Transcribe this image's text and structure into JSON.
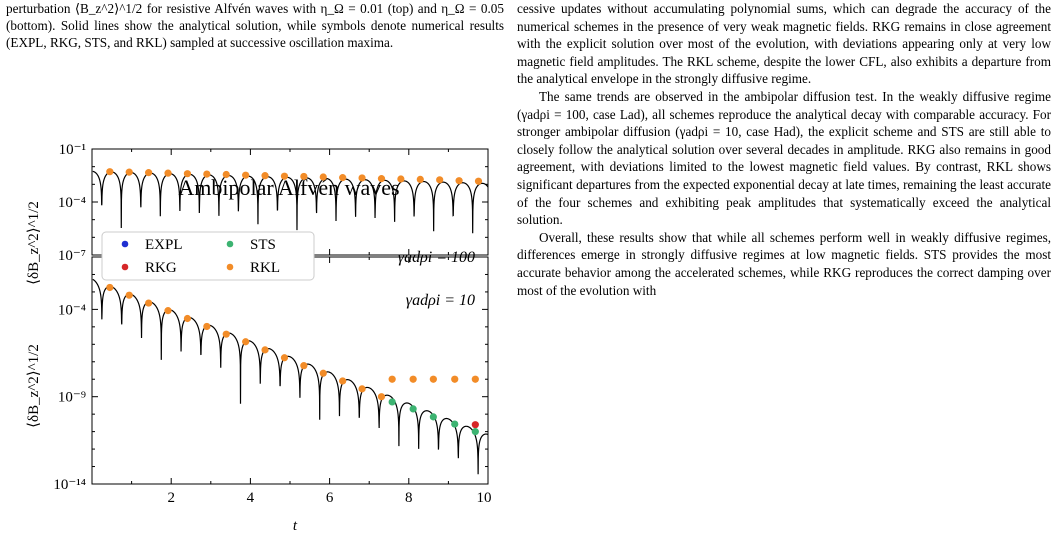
{
  "caption": {
    "text": "perturbation ⟨B_z^2⟩^1/2 for resistive Alfvén waves with η_Ω = 0.01 (top) and η_Ω = 0.05 (bottom). Solid lines show the analytical solution, while symbols denote numerical results (EXPL, RKG, STS, and RKL) sampled at successive oscillation maxima."
  },
  "body_text": {
    "p1": "cessive updates without accumulating polynomial sums, which can degrade the accuracy of the numerical schemes in the presence of very weak magnetic fields. RKG remains in close agreement with the explicit solution over most of the evolution, with deviations appearing only at very low magnetic field amplitudes. The RKL scheme, despite the lower CFL, also exhibits a departure from the analytical envelope in the strongly diffusive regime.",
    "p2": "The same trends are observed in the ambipolar diffusion test. In the weakly diffusive regime (γadρi = 100, case Lad), all schemes reproduce the analytical decay with comparable accuracy. For stronger ambipolar diffusion (γadρi = 10, case Had), the explicit scheme and STS are still able to closely follow the analytical solution over several decades in amplitude. RKG also remains in good agreement, with deviations limited to the lowest magnetic field values. By contrast, RKL shows significant departures from the expected exponential decay at late times, remaining the least accurate of the four schemes and exhibiting peak amplitudes that systematically exceed the analytical solution.",
    "p3": "Overall, these results show that while all schemes perform well in weakly diffusive regimes, differences emerge in strongly diffusive regimes at low magnetic fields. STS provides the most accurate behavior among the accelerated schemes, while RKG reproduces the correct damping over most of the evolution with"
  },
  "chart_data": [
    {
      "type": "line",
      "title": "Ambipolar Alfvén waves",
      "annotation": "γadρi = 100",
      "ylabel": "⟨δB_z^2⟩^1/2",
      "yscale": "log",
      "ylim": [
        1e-07,
        0.1
      ],
      "ytick_labels": [
        "10⁻⁷",
        "10⁻⁴",
        "10⁻¹"
      ],
      "xlim": [
        0,
        10
      ],
      "legend": {
        "placement": "lower-left",
        "entries": [
          "EXPL",
          "STS",
          "RKG",
          "RKL"
        ]
      },
      "colors": {
        "EXPL": "#1f2fd1",
        "RKG": "#d62728",
        "STS": "#3cb371",
        "RKL": "#f28c28",
        "analytical": "#000000"
      },
      "analytical": {
        "amplitude0": 0.0055,
        "decay_rate": 0.16,
        "half_period": 0.493
      },
      "markers_t": [
        0.45,
        0.94,
        1.43,
        1.92,
        2.41,
        2.9,
        3.39,
        3.88,
        4.37,
        4.86,
        5.35,
        5.84,
        6.33,
        6.82,
        7.31,
        7.8,
        8.29,
        8.78,
        9.27,
        9.76
      ],
      "markers_y": {
        "RKL": [
          0.0052,
          0.0049,
          0.0046,
          0.0043,
          0.004,
          0.0038,
          0.0036,
          0.0033,
          0.0031,
          0.0029,
          0.0028,
          0.0026,
          0.0024,
          0.0023,
          0.0021,
          0.002,
          0.0019,
          0.0018,
          0.0016,
          0.0015
        ]
      }
    },
    {
      "type": "line",
      "annotation": "γadρi = 10",
      "ylabel": "⟨δB_z^2⟩^1/2",
      "xlabel": "t",
      "yscale": "log",
      "ylim": [
        1e-14,
        0.1
      ],
      "ytick_labels": [
        "10⁻¹⁴",
        "10⁻⁹",
        "10⁻⁴"
      ],
      "xlim": [
        0,
        10
      ],
      "xtick_labels": [
        "2",
        "4",
        "6",
        "8",
        "10"
      ],
      "analytical": {
        "amplitude0": 0.0055,
        "decay_rate": 2.05,
        "half_period": 0.5
      },
      "markers_t": [
        0.45,
        0.94,
        1.43,
        1.92,
        2.41,
        2.9,
        3.39,
        3.88,
        4.37,
        4.86,
        5.35,
        5.84,
        6.33,
        6.82,
        7.31,
        7.58,
        8.11,
        8.62,
        9.16,
        9.68
      ],
      "markers_y": {
        "RKL": [
          0.0018,
          0.00065,
          0.00023,
          8.5e-05,
          3e-05,
          1.05e-05,
          3.8e-06,
          1.4e-06,
          4.8e-07,
          1.7e-07,
          6e-08,
          2.2e-08,
          8e-09,
          2.8e-09,
          1e-09,
          1e-08,
          1e-08,
          1e-08,
          1e-08,
          1e-08
        ],
        "STS": [
          null,
          null,
          null,
          null,
          null,
          null,
          null,
          null,
          null,
          null,
          null,
          null,
          null,
          null,
          null,
          5e-10,
          2e-10,
          7e-11,
          2.7e-11,
          1e-11
        ],
        "RKG": [
          null,
          null,
          null,
          null,
          null,
          null,
          null,
          null,
          null,
          null,
          null,
          null,
          null,
          null,
          null,
          null,
          null,
          null,
          null,
          2.5e-11
        ]
      }
    }
  ]
}
